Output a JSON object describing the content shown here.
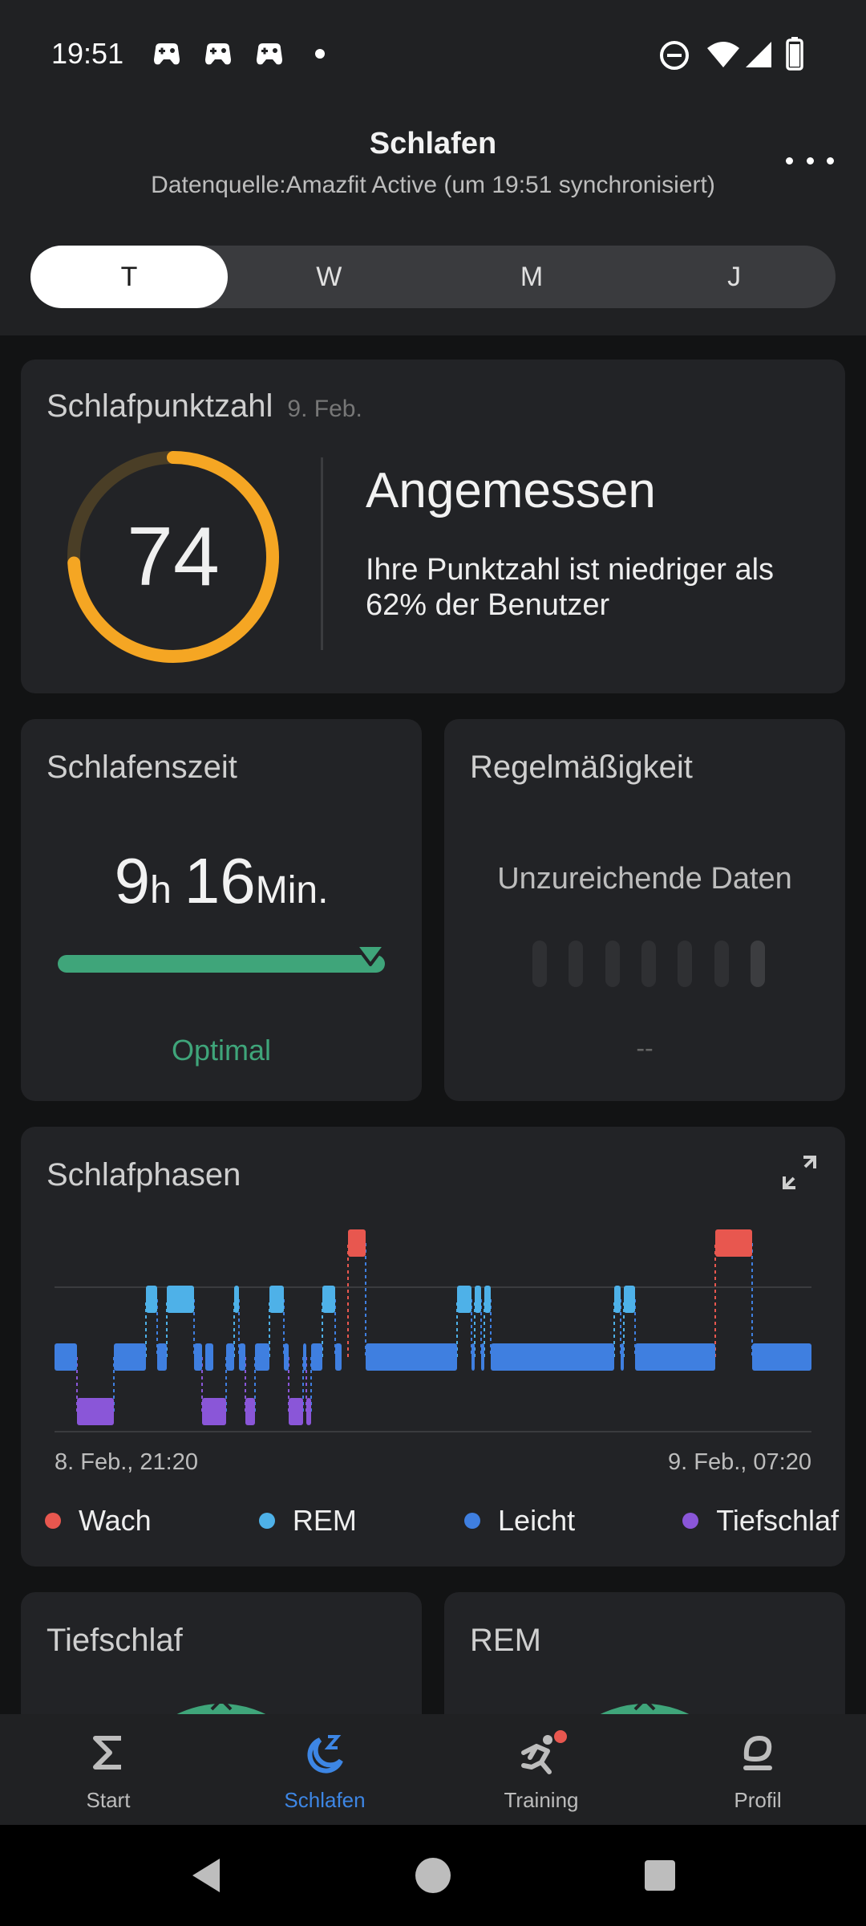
{
  "status_bar": {
    "time": "19:51",
    "icons": [
      "game-controller-icon",
      "game-controller-icon",
      "game-controller-icon",
      "dot-icon",
      "do-not-disturb-icon",
      "wifi-icon",
      "cellular-signal-icon",
      "battery-icon"
    ]
  },
  "header": {
    "title": "Schlafen",
    "subtitle": "Datenquelle:Amazfit Active (um 19:51 synchronisiert)",
    "more_icon": "more-horizontal-icon"
  },
  "period_tabs": {
    "items": [
      {
        "label": "T",
        "selected": true
      },
      {
        "label": "W",
        "selected": false
      },
      {
        "label": "M",
        "selected": false
      },
      {
        "label": "J",
        "selected": false
      }
    ]
  },
  "score_card": {
    "title": "Schlafpunktzahl",
    "date": "9. Feb.",
    "score": "74",
    "score_fraction": 0.74,
    "rating": "Angemessen",
    "description": "Ihre Punktzahl ist niedriger als 62% der Benutzer",
    "ring_color": "#f5a623",
    "ring_track_color": "#4a3e26"
  },
  "sleep_time_card": {
    "title": "Schlafenszeit",
    "hours": "9",
    "hours_unit": "h",
    "minutes": "16",
    "minutes_unit": "Min.",
    "status": "Optimal",
    "status_color": "#3fa57a"
  },
  "regularity_card": {
    "title": "Regelmäßigkeit",
    "message": "Unzureichende Daten",
    "value": "--"
  },
  "phases_card": {
    "title": "Schlafphasen",
    "expand_icon": "expand-icon",
    "start_label": "8. Feb., 21:20",
    "end_label": "9. Feb., 07:20",
    "legend": [
      {
        "label": "Wach",
        "color": "#e8574f"
      },
      {
        "label": "REM",
        "color": "#4eb1e8"
      },
      {
        "label": "Leicht",
        "color": "#3f7fe0"
      },
      {
        "label": "Tiefschlaf",
        "color": "#8a56d8"
      }
    ]
  },
  "deep_card": {
    "title": "Tiefschlaf"
  },
  "rem_card": {
    "title": "REM"
  },
  "bottom_nav": {
    "items": [
      {
        "label": "Start",
        "icon": "sigma-icon",
        "active": false
      },
      {
        "label": "Schlafen",
        "icon": "moon-sleep-icon",
        "active": true
      },
      {
        "label": "Training",
        "icon": "running-icon",
        "active": false,
        "badge": true
      },
      {
        "label": "Profil",
        "icon": "profile-icon",
        "active": false
      }
    ]
  },
  "system_nav": {
    "icons": [
      "back-icon",
      "home-icon",
      "recents-icon"
    ]
  }
}
